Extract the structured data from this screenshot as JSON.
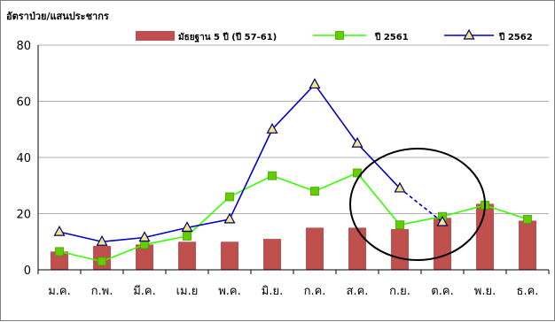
{
  "chart_data": {
    "type": "bar",
    "ylabel": "อัตราป่วย/แสนประชากร",
    "xlabel": "",
    "categories": [
      "ม.ค.",
      "ก.พ.",
      "มี.ค.",
      "เม.ย",
      "พ.ค.",
      "มิ.ย.",
      "ก.ค.",
      "ส.ค.",
      "ก.ย.",
      "ต.ค.",
      "พ.ย.",
      "ธ.ค."
    ],
    "ylim": [
      0,
      80
    ],
    "yticks": [
      "0",
      "20",
      "40",
      "60",
      "80"
    ],
    "grid": true,
    "legend_position": "top",
    "series": [
      {
        "name": "มัธยฐาน 5 ปี (ปี 57-61)",
        "type": "bar",
        "color": "#C0504D",
        "values": [
          6.5,
          8.5,
          9,
          10,
          10,
          11,
          15,
          15,
          14.5,
          18.5,
          23.5,
          17.5
        ]
      },
      {
        "name": "ปี 2561",
        "type": "line",
        "marker": "square",
        "color": "#33FF00",
        "marker_color": "#66CC00",
        "values": [
          6.5,
          3,
          9,
          12,
          26,
          33.5,
          28,
          34.5,
          16,
          19,
          23,
          18
        ]
      },
      {
        "name": "ปี 2562",
        "type": "line",
        "marker": "triangle",
        "color": "#0000CC",
        "marker_color": "#F0E68C",
        "values": [
          13.5,
          10,
          11.5,
          15,
          18,
          50,
          66,
          45,
          29,
          17,
          null,
          null
        ],
        "dashed_from_index": 8
      }
    ],
    "annotations": [
      {
        "type": "ellipse",
        "description": "circle around Sep-Oct"
      }
    ]
  }
}
